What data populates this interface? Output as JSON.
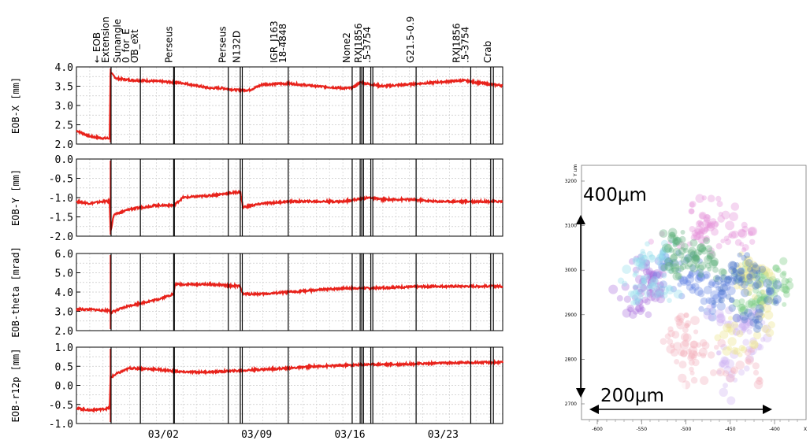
{
  "chart_data": [
    {
      "type": "line",
      "x_axis": {
        "range": [
          "02/25",
          "03/27"
        ],
        "tick_labels": [
          "03/02",
          "03/09",
          "03/16",
          "03/23"
        ],
        "tick_days": [
          7,
          14,
          21,
          28
        ]
      },
      "events": [
        {
          "day": 2.6,
          "label": "← EOB\nExtension"
        },
        {
          "day": 4.8,
          "label": "Sunangle\n0_for_E\nOB_ext"
        },
        {
          "day": 7.3,
          "label": ""
        },
        {
          "day": 7.35,
          "label": "Perseus"
        },
        {
          "day": 11.4,
          "label": "Perseus"
        },
        {
          "day": 12.3,
          "label": ""
        },
        {
          "day": 12.45,
          "label": "N132D"
        },
        {
          "day": 15.9,
          "label": "IGR_J163\n18-4848"
        },
        {
          "day": 20.7,
          "label": "None2"
        },
        {
          "day": 21.3,
          "label": ""
        },
        {
          "day": 21.42,
          "label": ""
        },
        {
          "day": 21.55,
          "label": ""
        },
        {
          "day": 22.1,
          "label": ""
        },
        {
          "day": 22.25,
          "label": "RXJ1856\n.5-3754"
        },
        {
          "day": 25.5,
          "label": "G21.5-0.9"
        },
        {
          "day": 29.6,
          "label": "RXJ1856\n.5-3754"
        },
        {
          "day": 31.1,
          "label": ""
        },
        {
          "day": 31.3,
          "label": "Crab"
        }
      ],
      "panels": [
        {
          "ylabel": "EOB-X [mm]",
          "ylim": [
            2.0,
            4.0
          ],
          "yticks": [
            "4.0",
            "3.5",
            "3.0",
            "2.5",
            "2.0"
          ],
          "series": [
            {
              "color": "#e8221b",
              "x": [
                0.0,
                1.0,
                2.0,
                2.5,
                2.55,
                3.0,
                4.0,
                6.0,
                8.0,
                10.0,
                11.0,
                12.0,
                13.0,
                14.0,
                16.0,
                18.0,
                20.0,
                20.7,
                21.3,
                22.0,
                23.0,
                25.0,
                27.0,
                29.0,
                31.0,
                32.0
              ],
              "y": [
                2.35,
                2.2,
                2.15,
                2.15,
                3.85,
                3.7,
                3.66,
                3.63,
                3.58,
                3.45,
                3.45,
                3.4,
                3.4,
                3.55,
                3.57,
                3.5,
                3.45,
                3.45,
                3.6,
                3.55,
                3.5,
                3.55,
                3.6,
                3.65,
                3.55,
                3.52
              ]
            }
          ]
        },
        {
          "ylabel": "EOB-Y [mm]",
          "ylim": [
            -2.0,
            0.0
          ],
          "yticks": [
            "0.0",
            "-0.5",
            "-1.0",
            "-1.5",
            "-2.0"
          ],
          "series": [
            {
              "color": "#e8221b",
              "x": [
                0.0,
                1.0,
                2.0,
                2.5,
                2.55,
                2.8,
                4.0,
                6.0,
                7.3,
                8.0,
                10.0,
                12.3,
                12.5,
                14.0,
                16.0,
                20.0,
                22.0,
                23.0,
                25.0,
                27.0,
                29.0,
                32.0
              ],
              "y": [
                -1.1,
                -1.15,
                -1.1,
                -1.1,
                -1.9,
                -1.45,
                -1.3,
                -1.2,
                -1.2,
                -1.0,
                -0.95,
                -0.85,
                -1.25,
                -1.15,
                -1.1,
                -1.1,
                -1.0,
                -1.05,
                -1.05,
                -1.1,
                -1.1,
                -1.1
              ]
            }
          ]
        },
        {
          "ylabel": "EOB-theta [mrad]",
          "ylim": [
            2.0,
            6.0
          ],
          "yticks": [
            "6.0",
            "5.0",
            "4.0",
            "3.0",
            "2.0"
          ],
          "series": [
            {
              "color": "#e8221b",
              "x": [
                0.0,
                1.0,
                2.0,
                2.5,
                2.55,
                2.8,
                4.0,
                6.0,
                7.3,
                7.4,
                10.0,
                12.3,
                12.5,
                14.0,
                16.0,
                18.0,
                20.0,
                22.0,
                24.0,
                27.0,
                30.0,
                32.0
              ],
              "y": [
                3.1,
                3.1,
                3.05,
                3.05,
                2.9,
                3.0,
                3.3,
                3.6,
                3.9,
                4.4,
                4.4,
                4.3,
                3.9,
                3.9,
                4.0,
                4.1,
                4.2,
                4.2,
                4.25,
                4.3,
                4.3,
                4.3
              ]
            }
          ]
        },
        {
          "ylabel": "EOB-r12p [mm]",
          "ylim": [
            -1.0,
            1.0
          ],
          "yticks": [
            "1.0",
            "0.5",
            "0.0",
            "-0.5",
            "-1.0"
          ],
          "series": [
            {
              "color": "#e8221b",
              "x": [
                0.0,
                1.0,
                2.0,
                2.5,
                2.55,
                3.0,
                4.0,
                6.0,
                8.0,
                10.0,
                12.0,
                14.0,
                16.0,
                18.0,
                20.0,
                22.0,
                24.0,
                27.0,
                30.0,
                32.0
              ],
              "y": [
                -0.6,
                -0.65,
                -0.62,
                -0.6,
                0.2,
                0.3,
                0.45,
                0.42,
                0.35,
                0.35,
                0.38,
                0.42,
                0.45,
                0.5,
                0.52,
                0.55,
                0.55,
                0.58,
                0.6,
                0.6
              ]
            }
          ]
        }
      ]
    },
    {
      "type": "scatter",
      "y_axis": {
        "unit_label": "Y um",
        "ticks": [
          "3200",
          "3100",
          "3000",
          "2900",
          "2800",
          "2700"
        ],
        "ylim": [
          2680,
          3220
        ]
      },
      "x_axis": {
        "unit_label": "X",
        "ticks": [
          "-600",
          "-550",
          "-500",
          "-450",
          "-400"
        ],
        "xlim": [
          -615,
          -385
        ]
      },
      "annotations": {
        "vertical": "400μm",
        "horizontal": "200μm"
      },
      "colors": [
        "#9b59d6",
        "#4a6fe0",
        "#5ec06a",
        "#e07ad0",
        "#7fd6e8",
        "#3fa060",
        "#c6a6f0",
        "#e8e070",
        "#f0a0b0",
        "#2f5fbf"
      ]
    }
  ]
}
